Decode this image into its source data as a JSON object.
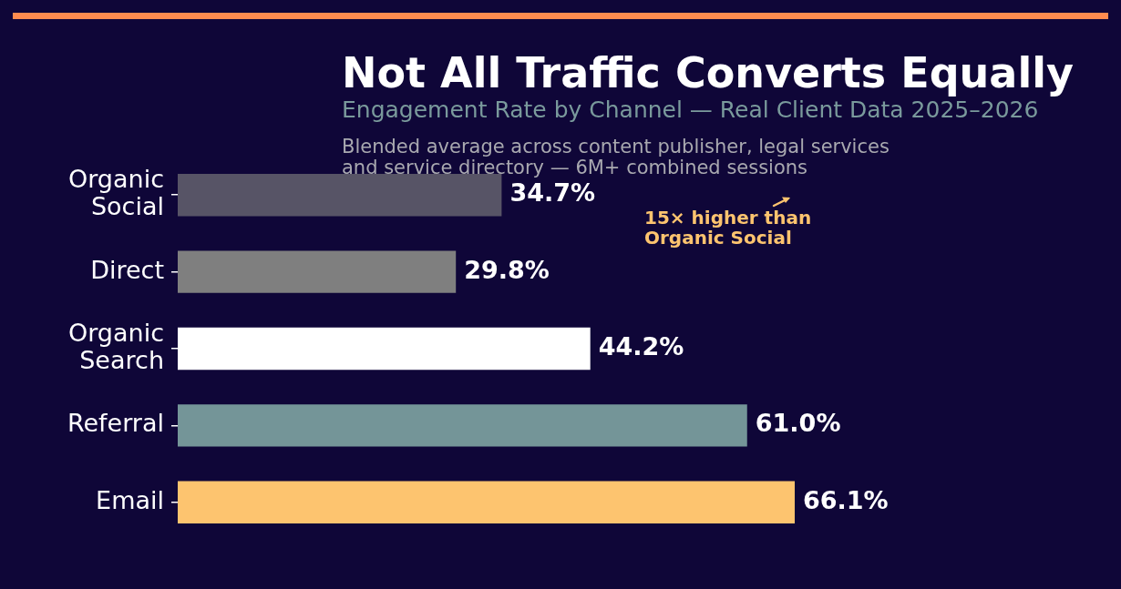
{
  "chart_data": {
    "type": "bar",
    "orientation": "horizontal",
    "title": "Not All Traffic Converts Equally",
    "subtitle": "Engagement Rate by Channel — Real Client Data 2025–2026",
    "annotations": [
      "Blended average across content publisher, legal services\nand service directory — 6M+ combined sessions",
      "15× higher than\nOrganic Social"
    ],
    "categories": [
      "Organic Social",
      "Direct",
      "Organic Search",
      "Referral",
      "Email"
    ],
    "values": [
      34.7,
      29.8,
      44.2,
      61.0,
      66.1
    ],
    "colors": [
      "#575466",
      "#7f7f7f",
      "#ffffff",
      "#749598",
      "#fdc46f"
    ],
    "value_labels": [
      "34.7%",
      "29.8%",
      "44.2%",
      "61.0%",
      "66.1%"
    ],
    "tick_labels": "y"
  }
}
